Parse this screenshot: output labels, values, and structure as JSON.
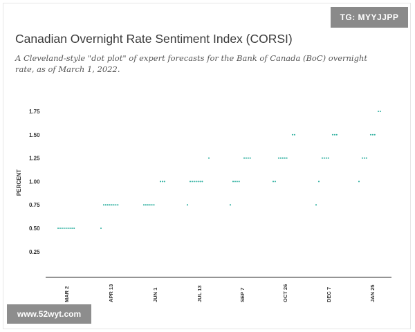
{
  "header": {
    "title": "Canadian Overnight Rate Sentiment Index (CORSI)",
    "subtitle": "A Cleveland-style \"dot plot\" of expert forecasts for the Bank of Canada (BoC) overnight rate, as of March 1, 2022."
  },
  "watermarks": {
    "top_right": "TG: MYYJJPP",
    "bottom_left": "www.52wyt.com"
  },
  "chart_data": {
    "type": "scatter",
    "title": "Canadian Overnight Rate Sentiment Index (CORSI)",
    "xlabel": "",
    "ylabel": "PERCENT",
    "categories": [
      "MAR 2",
      "APR 13",
      "JUN 1",
      "JUL 13",
      "SEP 7",
      "OCT 26",
      "DEC 7",
      "JAN 25"
    ],
    "y_ticks": [
      "1.75",
      "1.50",
      "1.25",
      "1.00",
      "0.75",
      "0.50",
      "0.25"
    ],
    "ylim": [
      0,
      1.75
    ],
    "grid": false,
    "dot_color": "#2fb0a0",
    "points": [
      {
        "category": "MAR 2",
        "y": 0.5,
        "count": 9
      },
      {
        "category": "APR 13",
        "y": 0.5,
        "count": 1
      },
      {
        "category": "APR 13",
        "y": 0.75,
        "count": 8
      },
      {
        "category": "JUN 1",
        "y": 0.75,
        "count": 6
      },
      {
        "category": "JUN 1",
        "y": 1.0,
        "count": 3
      },
      {
        "category": "JUL 13",
        "y": 0.75,
        "count": 1
      },
      {
        "category": "JUL 13",
        "y": 1.0,
        "count": 7
      },
      {
        "category": "JUL 13",
        "y": 1.25,
        "count": 1
      },
      {
        "category": "SEP 7",
        "y": 0.75,
        "count": 1
      },
      {
        "category": "SEP 7",
        "y": 1.0,
        "count": 4
      },
      {
        "category": "SEP 7",
        "y": 1.25,
        "count": 4
      },
      {
        "category": "OCT 26",
        "y": 1.0,
        "count": 2
      },
      {
        "category": "OCT 26",
        "y": 1.25,
        "count": 5
      },
      {
        "category": "OCT 26",
        "y": 1.5,
        "count": 2
      },
      {
        "category": "DEC 7",
        "y": 0.75,
        "count": 1
      },
      {
        "category": "DEC 7",
        "y": 1.0,
        "count": 1
      },
      {
        "category": "DEC 7",
        "y": 1.25,
        "count": 4
      },
      {
        "category": "DEC 7",
        "y": 1.5,
        "count": 3
      },
      {
        "category": "JAN 25",
        "y": 1.0,
        "count": 1
      },
      {
        "category": "JAN 25",
        "y": 1.25,
        "count": 3
      },
      {
        "category": "JAN 25",
        "y": 1.5,
        "count": 3
      },
      {
        "category": "JAN 25",
        "y": 1.75,
        "count": 2
      }
    ]
  }
}
